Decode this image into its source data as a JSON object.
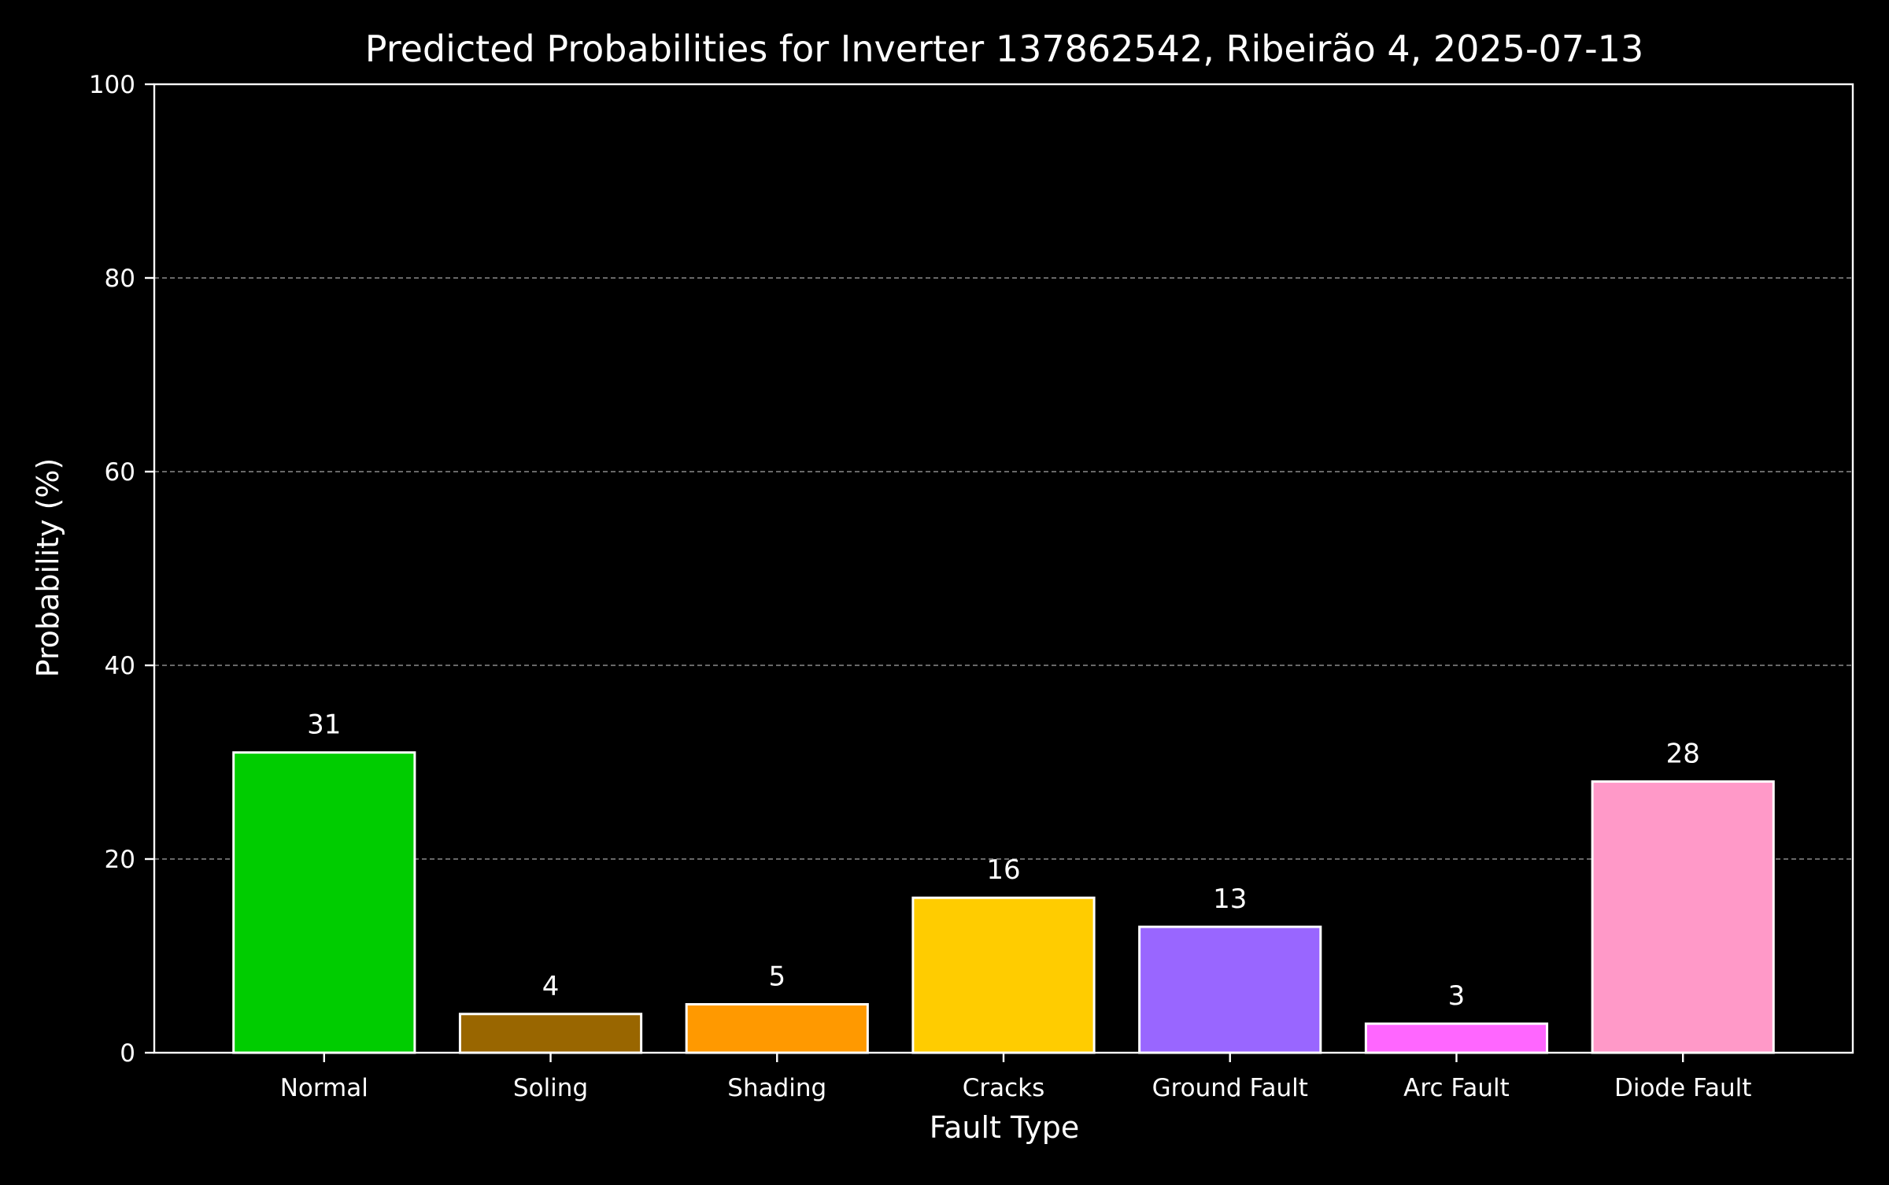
{
  "chart_data": {
    "type": "bar",
    "title": "Predicted Probabilities for Inverter 137862542, Ribeirão 4, 2025-07-13",
    "xlabel": "Fault Type",
    "ylabel": "Probability (%)",
    "ylim": [
      0,
      100
    ],
    "yticks": [
      0,
      20,
      40,
      60,
      80,
      100
    ],
    "grid": "horizontal dashed",
    "categories": [
      "Normal",
      "Soling",
      "Shading",
      "Cracks",
      "Ground Fault",
      "Arc Fault",
      "Diode Fault"
    ],
    "values": [
      31,
      4,
      5,
      16,
      13,
      3,
      28
    ],
    "data_labels": [
      "31",
      "4",
      "5",
      "16",
      "13",
      "3",
      "28"
    ],
    "colors": [
      "#00cc00",
      "#996600",
      "#ff9900",
      "#ffcc00",
      "#9966ff",
      "#ff66ff",
      "#ff99c8"
    ],
    "bar_edge_color": "#ffffff",
    "background": "#000000",
    "foreground": "#ffffff"
  }
}
